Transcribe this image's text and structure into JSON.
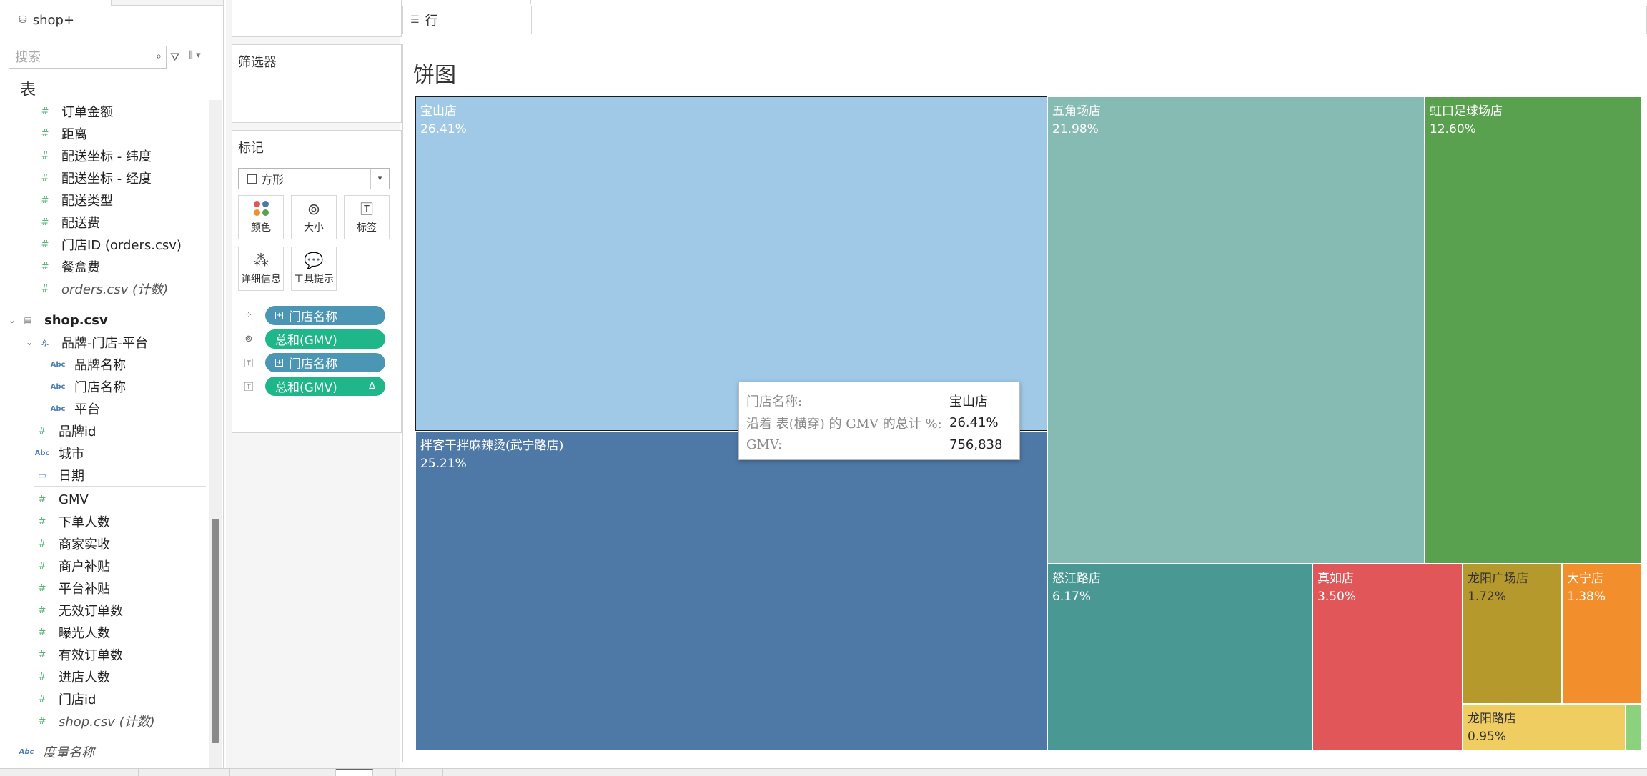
{
  "datasource": {
    "name": "shop+",
    "icon": "datasource-icon"
  },
  "search": {
    "placeholder": "搜索"
  },
  "tables_heading": "表",
  "orders_fields": [
    {
      "label": "订单金额",
      "type": "measure"
    },
    {
      "label": "距离",
      "type": "measure"
    },
    {
      "label": "配送坐标 - 纬度",
      "type": "measure"
    },
    {
      "label": "配送坐标 - 经度",
      "type": "measure"
    },
    {
      "label": "配送类型",
      "type": "measure"
    },
    {
      "label": "配送费",
      "type": "measure"
    },
    {
      "label": "门店ID (orders.csv)",
      "type": "measure"
    },
    {
      "label": "餐盒费",
      "type": "measure"
    },
    {
      "label": "orders.csv (计数)",
      "type": "measure",
      "italic": true
    }
  ],
  "shop_table": {
    "name": "shop.csv"
  },
  "hierarchy": {
    "name": "品牌-门店-平台",
    "children": [
      "品牌名称",
      "门店名称",
      "平台"
    ]
  },
  "shop_dims": [
    {
      "label": "品牌id",
      "type": "measure"
    },
    {
      "label": "城市",
      "type": "dimension"
    },
    {
      "label": "日期",
      "type": "date"
    }
  ],
  "shop_measures": [
    "GMV",
    "下单人数",
    "商家实收",
    "商户补贴",
    "平台补贴",
    "无效订单数",
    "曝光人数",
    "有效订单数",
    "进店人数",
    "门店id"
  ],
  "shop_count": "shop.csv (计数)",
  "measure_names": "度量名称",
  "filters_title": "筛选器",
  "marks": {
    "title": "标记",
    "type": "方形",
    "buttons": {
      "color": "颜色",
      "size": "大小",
      "label": "标签",
      "detail": "详细信息",
      "tooltip": "工具提示"
    },
    "pills": [
      {
        "icon": "color-marks-icon",
        "label": "门店名称",
        "kind": "dimension"
      },
      {
        "icon": "size-marks-icon",
        "label": "总和(GMV)",
        "kind": "measure"
      },
      {
        "icon": "label-marks-icon",
        "label": "门店名称",
        "kind": "dimension"
      },
      {
        "icon": "label-marks-icon",
        "label": "总和(GMV)",
        "kind": "measure",
        "delta": "Δ"
      }
    ]
  },
  "rows_shelf": {
    "label": "行"
  },
  "viz_title": "饼图",
  "chart_data": {
    "type": "treemap",
    "title": "饼图",
    "size_measure": "总和(GMV)",
    "color_dimension": "门店名称",
    "items": [
      {
        "name": "宝山店",
        "percent": "26.41%",
        "value": 26.41,
        "color": "#a0c9e7",
        "selected": true
      },
      {
        "name": "拌客干拌麻辣烫(武宁路店)",
        "percent": "25.21%",
        "value": 25.21,
        "color": "#4e79a7"
      },
      {
        "name": "五角场店",
        "percent": "21.98%",
        "value": 21.98,
        "color": "#86bbb3"
      },
      {
        "name": "虹口足球场店",
        "percent": "12.60%",
        "value": 12.6,
        "color": "#59a14e"
      },
      {
        "name": "怒江路店",
        "percent": "6.17%",
        "value": 6.17,
        "color": "#499894"
      },
      {
        "name": "真如店",
        "percent": "3.50%",
        "value": 3.5,
        "color": "#e15759"
      },
      {
        "name": "龙阳广场店",
        "percent": "1.72%",
        "value": 1.72,
        "color": "#b6992d"
      },
      {
        "name": "大宁店",
        "percent": "1.38%",
        "value": 1.38,
        "color": "#f28e2b"
      },
      {
        "name": "龙阳路店",
        "percent": "0.95%",
        "value": 0.95,
        "color": "#f0cd61"
      },
      {
        "name": "",
        "percent": "",
        "value": 0.08,
        "color": "#8cd17d"
      }
    ]
  },
  "tooltip": {
    "rows": [
      {
        "key": "门店名称:",
        "value": "宝山店"
      },
      {
        "key": "沿着 表(横穿) 的 GMV 的总计 %:",
        "value": "26.41%"
      },
      {
        "key": "GMV:",
        "value": "756,838"
      }
    ]
  }
}
